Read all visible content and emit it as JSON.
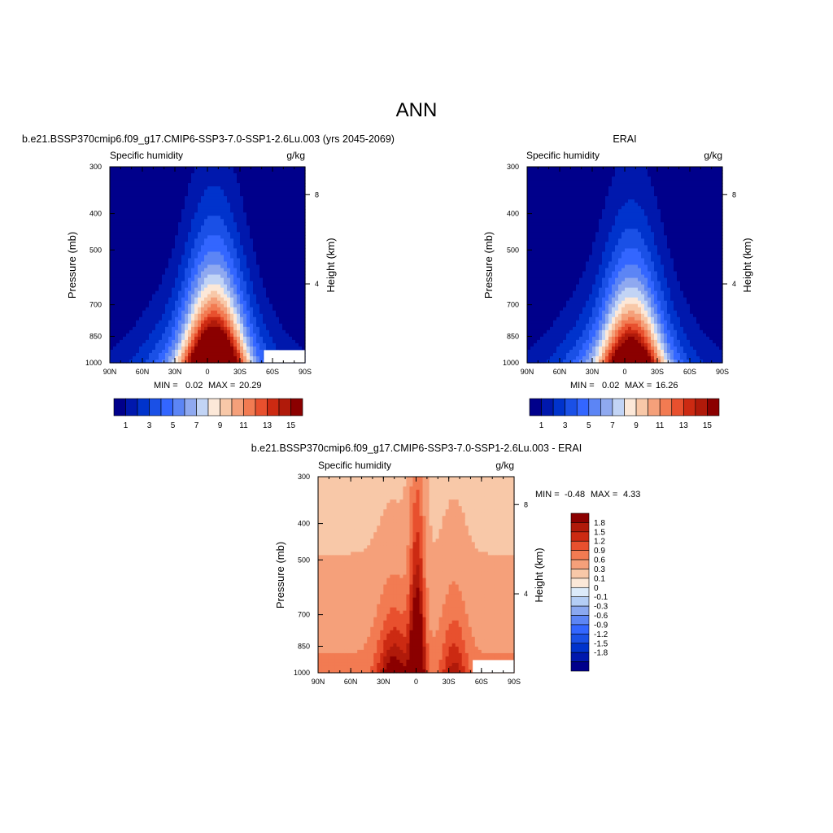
{
  "figure": {
    "title": "ANN"
  },
  "colors": {
    "abs_scale": [
      "#00008b",
      "#0018ad",
      "#0033cc",
      "#1a50e6",
      "#3366ff",
      "#5c85f5",
      "#8fa9f0",
      "#c2d4f5",
      "#fce8d8",
      "#f8c8a8",
      "#f5a07a",
      "#f27b52",
      "#e8502e",
      "#cc2a12",
      "#b01a0a",
      "#8b0000"
    ],
    "diff_scale": [
      "#8b0000",
      "#b01a0a",
      "#cc2a12",
      "#e8502e",
      "#f27b52",
      "#f5a07a",
      "#f8c8a8",
      "#fce8d8",
      "#dcebfa",
      "#b4cef5",
      "#8aa8f0",
      "#5c85f5",
      "#3366ff",
      "#1a50e6",
      "#0033cc",
      "#0018ad",
      "#00008b"
    ]
  },
  "chart_data": [
    {
      "type": "heatmap",
      "title": "b.e21.BSSP370cmip6.f09_g17.CMIP6-SSP3-7.0-SSP1-2.6Lu.003 (yrs 2045-2069)",
      "left_label": "Specific humidity",
      "right_label": "g/kg",
      "ylabel": "Pressure (mb)",
      "ylabel_right": "Height (km)",
      "x_ticks": [
        "90N",
        "60N",
        "30N",
        "0",
        "30S",
        "60S",
        "90S"
      ],
      "x_range": [
        90,
        -90
      ],
      "y_ticks": [
        "300",
        "400",
        "500",
        "700",
        "850",
        "1000"
      ],
      "y_range": [
        1000,
        300
      ],
      "y_scale": "log",
      "height_ticks": [
        "8",
        "4"
      ],
      "stats": {
        "min_label": "MIN =",
        "min": "0.02",
        "max_label": "MAX =",
        "max": "20.29"
      },
      "colorbar_labels": [
        "1",
        "3",
        "5",
        "7",
        "9",
        "11",
        "13",
        "15"
      ],
      "peak": 20.29,
      "missing_region": "lower-right"
    },
    {
      "type": "heatmap",
      "title": "ERAI",
      "left_label": "Specific humidity",
      "right_label": "g/kg",
      "ylabel": "Pressure (mb)",
      "ylabel_right": "Height (km)",
      "x_ticks": [
        "90N",
        "60N",
        "30N",
        "0",
        "30S",
        "60S",
        "90S"
      ],
      "x_range": [
        90,
        -90
      ],
      "y_ticks": [
        "300",
        "400",
        "500",
        "700",
        "850",
        "1000"
      ],
      "y_range": [
        1000,
        300
      ],
      "y_scale": "log",
      "height_ticks": [
        "8",
        "4"
      ],
      "stats": {
        "min_label": "MIN =",
        "min": "0.02",
        "max_label": "MAX =",
        "max": "16.26"
      },
      "colorbar_labels": [
        "1",
        "3",
        "5",
        "7",
        "9",
        "11",
        "13",
        "15"
      ],
      "peak": 16.26
    },
    {
      "type": "heatmap",
      "title": "b.e21.BSSP370cmip6.f09_g17.CMIP6-SSP3-7.0-SSP1-2.6Lu.003 - ERAI",
      "left_label": "Specific humidity",
      "right_label": "g/kg",
      "ylabel": "Pressure (mb)",
      "ylabel_right": "Height (km)",
      "x_ticks": [
        "90N",
        "60N",
        "30N",
        "0",
        "30S",
        "60S",
        "90S"
      ],
      "x_range": [
        90,
        -90
      ],
      "y_ticks": [
        "300",
        "400",
        "500",
        "700",
        "850",
        "1000"
      ],
      "y_range": [
        1000,
        300
      ],
      "y_scale": "log",
      "height_ticks": [
        "8",
        "4"
      ],
      "stats": {
        "min_label": "MIN =",
        "min": "-0.48",
        "max_label": "MAX =",
        "max": "4.33"
      },
      "colorbar_labels": [
        "1.8",
        "1.5",
        "1.2",
        "0.9",
        "0.6",
        "0.3",
        "0.1",
        "0",
        "-0.1",
        "-0.3",
        "-0.6",
        "-0.9",
        "-1.2",
        "-1.5",
        "-1.8"
      ],
      "missing_region": "lower-right"
    }
  ]
}
